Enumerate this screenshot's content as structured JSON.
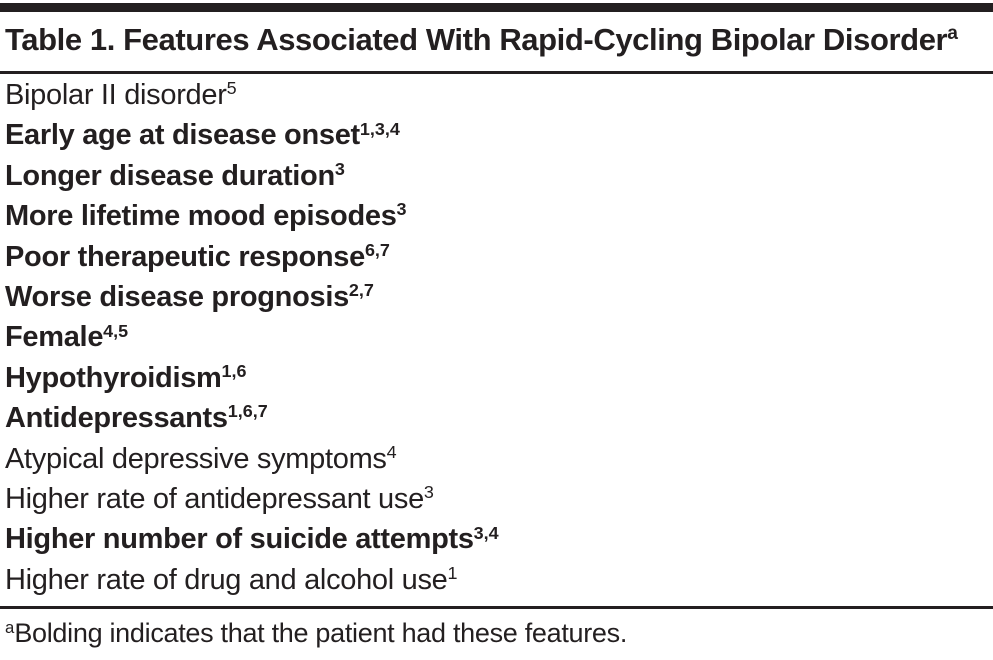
{
  "table": {
    "title": "Table 1. Features Associated With Rapid-Cycling Bipolar Disorder",
    "title_superscript": "a",
    "rows": [
      {
        "text": "Bipolar II disorder",
        "sup": "5",
        "bold": false
      },
      {
        "text": "Early age at disease onset",
        "sup": "1,3,4",
        "bold": true
      },
      {
        "text": "Longer disease duration",
        "sup": "3",
        "bold": true
      },
      {
        "text": "More lifetime mood episodes",
        "sup": "3",
        "bold": true
      },
      {
        "text": "Poor therapeutic response",
        "sup": "6,7",
        "bold": true
      },
      {
        "text": "Worse disease prognosis",
        "sup": "2,7",
        "bold": true
      },
      {
        "text": "Female",
        "sup": "4,5",
        "bold": true
      },
      {
        "text": "Hypothyroidism",
        "sup": "1,6",
        "bold": true
      },
      {
        "text": "Antidepressants",
        "sup": "1,6,7",
        "bold": true
      },
      {
        "text": "Atypical depressive symptoms",
        "sup": "4",
        "bold": false
      },
      {
        "text": "Higher rate of antidepressant use",
        "sup": "3",
        "bold": false
      },
      {
        "text": "Higher number of suicide attempts",
        "sup": "3,4",
        "bold": true
      },
      {
        "text": "Higher rate of drug and alcohol use",
        "sup": "1",
        "bold": false
      }
    ],
    "footnote": {
      "marker": "a",
      "text": "Bolding indicates that the patient had these features."
    }
  },
  "colors": {
    "text": "#231f20",
    "rule": "#231f20",
    "background": "#ffffff"
  }
}
